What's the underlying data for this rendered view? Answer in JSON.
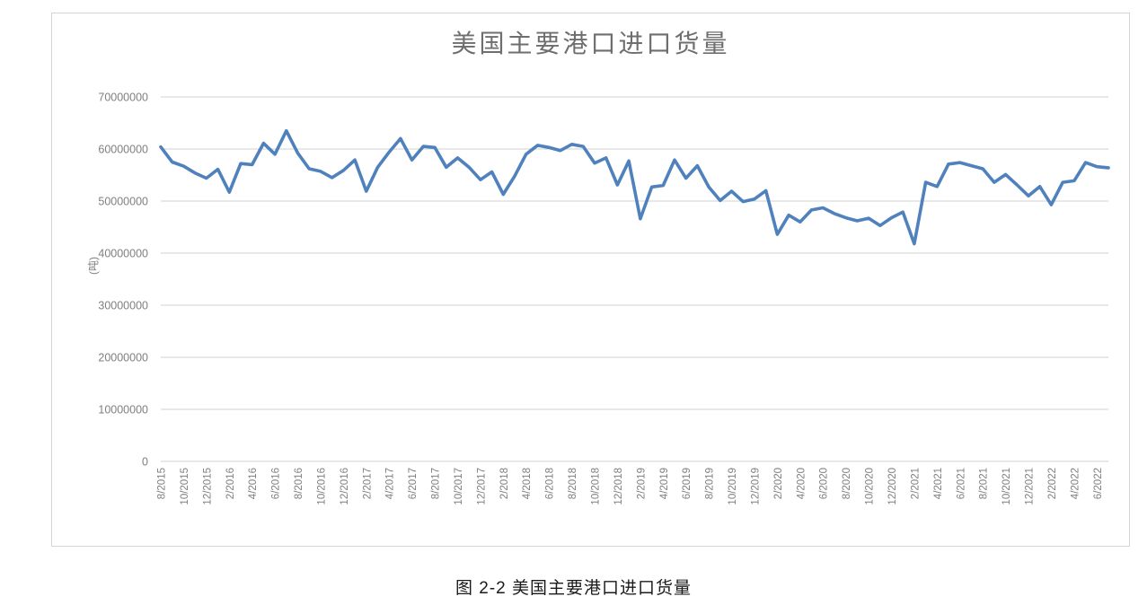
{
  "chart": {
    "title": "美国主要港口进口货量",
    "y_axis_title": "(吨)",
    "caption": "图 2-2 美国主要港口进口货量"
  },
  "chart_data": {
    "type": "line",
    "title": "美国主要港口进口货量",
    "ylabel": "(吨)",
    "xlabel": "",
    "legend": "none",
    "grid": "horizontal",
    "ylim": [
      0,
      70000000
    ],
    "y_ticks": [
      0,
      10000000,
      20000000,
      30000000,
      40000000,
      50000000,
      60000000,
      70000000
    ],
    "x_label_every": 2,
    "x": [
      "8/2015",
      "9/2015",
      "10/2015",
      "11/2015",
      "12/2015",
      "1/2016",
      "2/2016",
      "3/2016",
      "4/2016",
      "5/2016",
      "6/2016",
      "7/2016",
      "8/2016",
      "9/2016",
      "10/2016",
      "11/2016",
      "12/2016",
      "1/2017",
      "2/2017",
      "3/2017",
      "4/2017",
      "5/2017",
      "6/2017",
      "7/2017",
      "8/2017",
      "9/2017",
      "10/2017",
      "11/2017",
      "12/2017",
      "1/2018",
      "2/2018",
      "3/2018",
      "4/2018",
      "5/2018",
      "6/2018",
      "7/2018",
      "8/2018",
      "9/2018",
      "10/2018",
      "11/2018",
      "12/2018",
      "1/2019",
      "2/2019",
      "3/2019",
      "4/2019",
      "5/2019",
      "6/2019",
      "7/2019",
      "8/2019",
      "9/2019",
      "10/2019",
      "11/2019",
      "12/2019",
      "1/2020",
      "2/2020",
      "3/2020",
      "4/2020",
      "5/2020",
      "6/2020",
      "7/2020",
      "8/2020",
      "9/2020",
      "10/2020",
      "11/2020",
      "12/2020",
      "1/2021",
      "2/2021",
      "3/2021",
      "4/2021",
      "5/2021",
      "6/2021",
      "7/2021",
      "8/2021",
      "9/2021",
      "10/2021",
      "11/2021",
      "12/2021",
      "1/2022",
      "2/2022",
      "3/2022",
      "4/2022",
      "5/2022",
      "6/2022",
      "7/2022"
    ],
    "values": [
      60400000,
      57500000,
      56700000,
      55400000,
      54400000,
      56100000,
      51700000,
      57200000,
      57000000,
      61100000,
      59000000,
      63500000,
      59200000,
      56200000,
      55700000,
      54500000,
      55900000,
      57900000,
      51900000,
      56500000,
      59400000,
      62000000,
      57900000,
      60500000,
      60300000,
      56500000,
      58300000,
      56500000,
      54100000,
      55600000,
      51300000,
      54800000,
      59000000,
      60700000,
      60300000,
      59700000,
      60900000,
      60500000,
      57300000,
      58300000,
      53100000,
      57700000,
      46600000,
      52700000,
      53000000,
      57900000,
      54400000,
      56800000,
      52700000,
      50100000,
      51900000,
      49900000,
      50400000,
      52000000,
      43600000,
      47300000,
      46000000,
      48300000,
      48700000,
      47600000,
      46800000,
      46200000,
      46700000,
      45300000,
      46800000,
      47900000,
      41800000,
      53600000,
      52800000,
      57100000,
      57400000,
      56800000,
      56200000,
      53600000,
      55100000,
      53100000,
      51000000,
      52800000,
      49300000,
      53600000,
      53900000,
      57400000,
      56600000,
      56400000
    ],
    "colors": {
      "series": "#4f81bd",
      "gridline": "#d9d9d9",
      "tick_text": "#7f7f7f",
      "title_text": "#6e6e6e"
    }
  }
}
